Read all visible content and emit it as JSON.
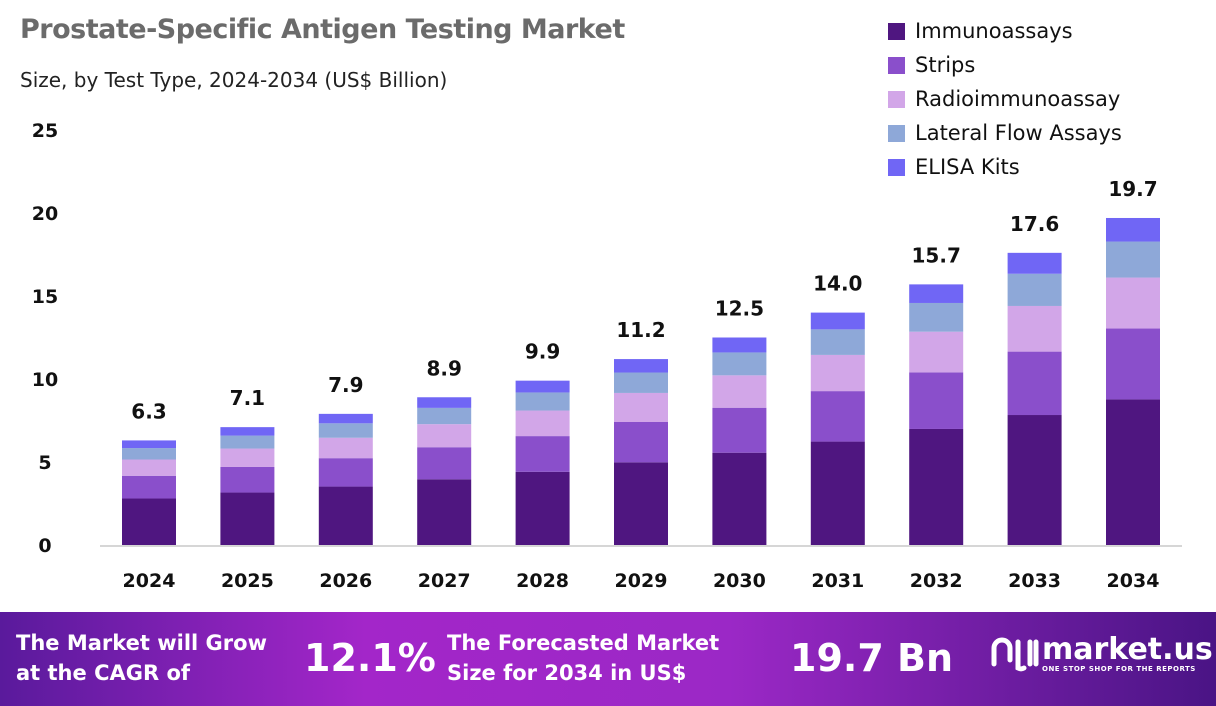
{
  "chart_data": {
    "type": "stacked-bar",
    "title": "Prostate-Specific Antigen Testing Market",
    "subtitle": "Size, by Test Type, 2024-2034 (US$ Billion)",
    "categories": [
      "2024",
      "2025",
      "2026",
      "2027",
      "2028",
      "2029",
      "2030",
      "2031",
      "2032",
      "2033",
      "2034"
    ],
    "totals": [
      "6.3",
      "7.1",
      "7.9",
      "8.9",
      "9.9",
      "11.2",
      "12.5",
      "14.0",
      "15.7",
      "17.6",
      "19.7"
    ],
    "series": [
      {
        "name": "Immunoassays",
        "color": "#4f1680",
        "values": [
          2.8,
          3.16,
          3.52,
          3.96,
          4.41,
          4.98,
          5.56,
          6.23,
          6.99,
          7.83,
          8.77
        ]
      },
      {
        "name": "Strips",
        "color": "#8a4fcb",
        "values": [
          1.37,
          1.54,
          1.71,
          1.93,
          2.15,
          2.43,
          2.71,
          3.04,
          3.41,
          3.82,
          4.27
        ]
      },
      {
        "name": "Radioimmunoassay",
        "color": "#d2a6e8",
        "values": [
          0.98,
          1.11,
          1.23,
          1.39,
          1.54,
          1.75,
          1.95,
          2.18,
          2.45,
          2.75,
          3.07
        ]
      },
      {
        "name": "Lateral Flow Assays",
        "color": "#8ea8d8",
        "values": [
          0.69,
          0.78,
          0.87,
          0.98,
          1.09,
          1.23,
          1.38,
          1.54,
          1.73,
          1.94,
          2.17
        ]
      },
      {
        "name": "ELISA Kits",
        "color": "#7066f5",
        "values": [
          0.46,
          0.51,
          0.57,
          0.64,
          0.71,
          0.81,
          0.9,
          1.01,
          1.12,
          1.26,
          1.42
        ]
      }
    ],
    "yticks": [
      "0",
      "5",
      "10",
      "15",
      "20",
      "25"
    ],
    "ylim": [
      0,
      25
    ],
    "grid": false,
    "legend": "top-right"
  },
  "banner": {
    "cagr_text": "The Market will Grow at the CAGR of",
    "cagr_value": "12.1%",
    "forecast_text": "The Forecasted Market Size for 2034 in US$",
    "forecast_value": "19.7 Bn",
    "logo": "market.us",
    "logo_tagline": "ONE STOP SHOP FOR THE REPORTS"
  }
}
